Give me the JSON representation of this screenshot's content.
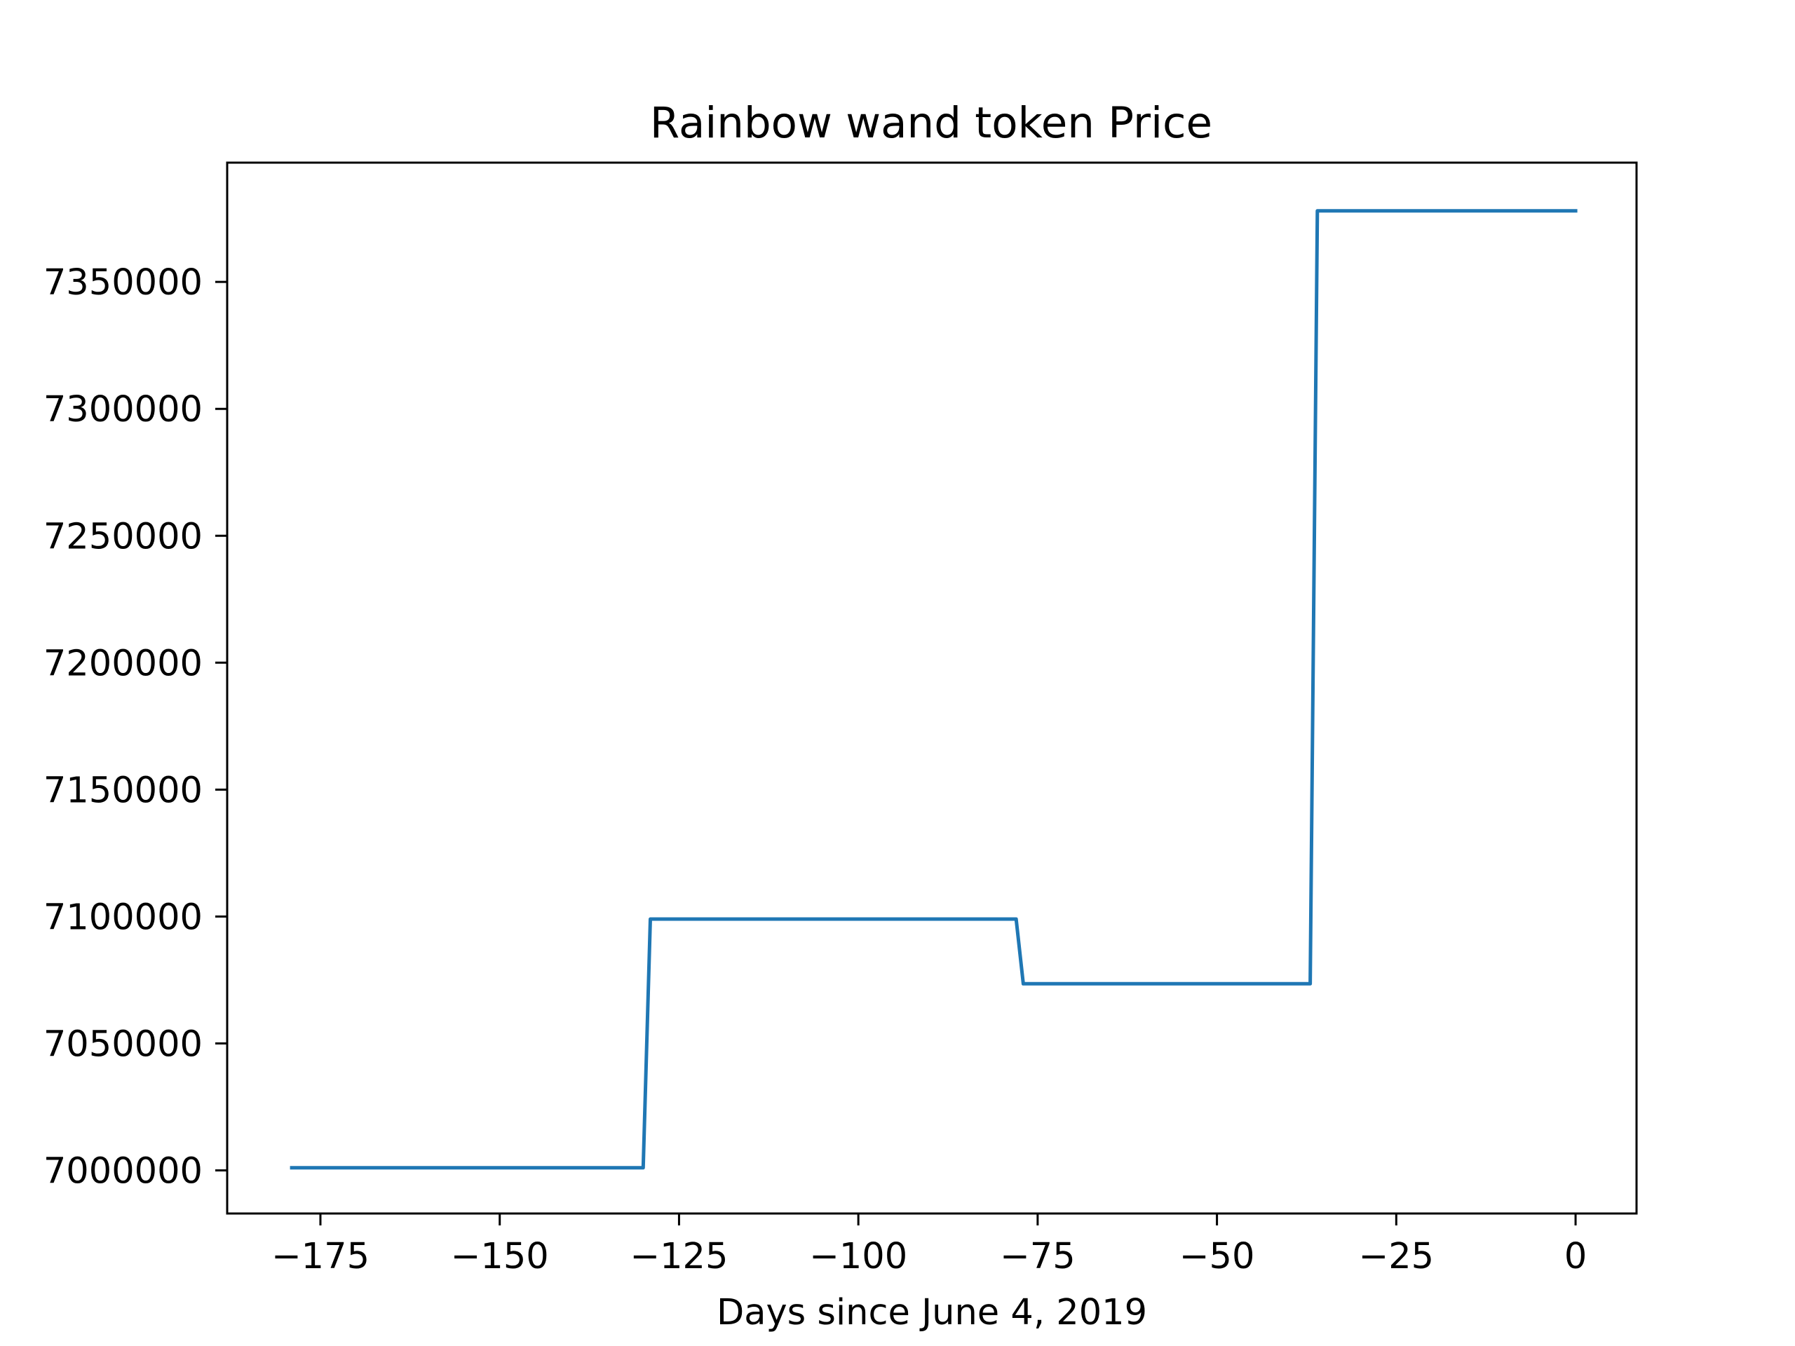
{
  "chart_data": {
    "type": "line",
    "title": "Rainbow wand token Price",
    "xlabel": "Days since June 4, 2019",
    "ylabel": "",
    "xlim": [
      -188,
      8.5
    ],
    "ylim": [
      6983000,
      7397000
    ],
    "xticks": [
      -175,
      -150,
      -125,
      -100,
      -75,
      -50,
      -25,
      0
    ],
    "xtick_labels": [
      "−175",
      "−150",
      "−125",
      "−100",
      "−75",
      "−50",
      "−25",
      "0"
    ],
    "yticks": [
      7000000,
      7050000,
      7100000,
      7150000,
      7200000,
      7250000,
      7300000,
      7350000
    ],
    "ytick_labels": [
      "7000000",
      "7050000",
      "7100000",
      "7150000",
      "7200000",
      "7250000",
      "7300000",
      "7350000"
    ],
    "grid": false,
    "legend": "none",
    "series": [
      {
        "color": "#1f77b4",
        "x": [
          -179,
          -130,
          -129,
          -78,
          -77,
          -37,
          -36,
          0
        ],
        "y": [
          7001000,
          7001000,
          7099000,
          7099000,
          7073500,
          7073500,
          7378000,
          7378000
        ]
      }
    ]
  }
}
